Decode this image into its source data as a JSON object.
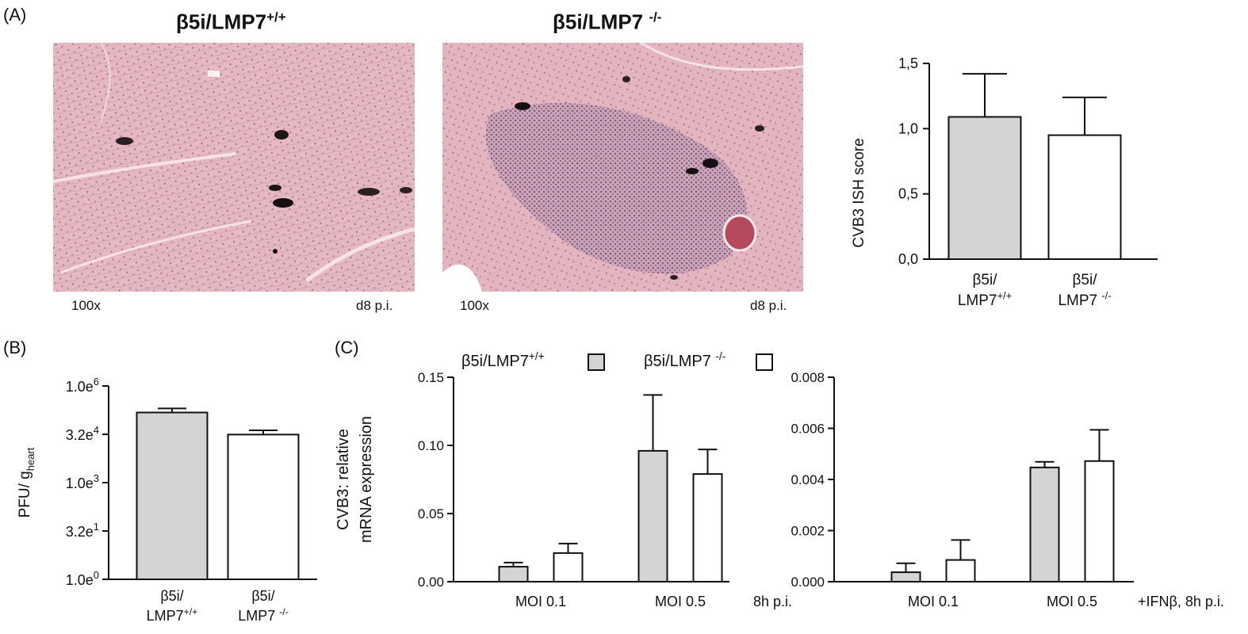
{
  "panels": {
    "a": "(A)",
    "b": "(B)",
    "c": "(C)"
  },
  "micro": {
    "left": {
      "title_main": "β5i/LMP7",
      "title_sup": "+/+",
      "magnification": "100x",
      "timepoint": "d8 p.i."
    },
    "right": {
      "title_main": "β5i/LMP7 ",
      "title_sup": "-/-",
      "magnification": "100x",
      "timepoint": "d8 p.i."
    }
  },
  "colors": {
    "wt_fill": "#d4d4d4",
    "ko_fill": "#ffffff",
    "stroke": "#111111",
    "tissue": "#e2b3bd",
    "tissue_dark": "#c98fa0",
    "stain": "#1a1418",
    "infiltrate": "#8a6d92"
  },
  "chart_data": [
    {
      "id": "ish",
      "type": "bar",
      "ylabel": "CVB3 ISH score",
      "ylim": [
        0,
        1.5
      ],
      "yticks": [
        "0,0",
        "0,5",
        "1,0",
        "1,5"
      ],
      "ytick_values": [
        0,
        0.5,
        1.0,
        1.5
      ],
      "categories": [
        {
          "line1": "β5i/",
          "line2": "LMP7",
          "sup": "+/+"
        },
        {
          "line1": "β5i/",
          "line2": "LMP7 ",
          "sup": "-/-"
        }
      ],
      "values": [
        1.09,
        0.95
      ],
      "errors": [
        0.33,
        0.29
      ]
    },
    {
      "id": "pfu",
      "type": "bar",
      "ylabel_main": "PFU/ g",
      "ylabel_sub": "heart",
      "scale": "log10",
      "ylim": [
        1,
        1000000
      ],
      "yticks": [
        {
          "base": "1.0e",
          "exp": "0"
        },
        {
          "base": "3.2e",
          "exp": "1"
        },
        {
          "base": "1.0e",
          "exp": "3"
        },
        {
          "base": "3.2e",
          "exp": "4"
        },
        {
          "base": "1.0e",
          "exp": "6"
        }
      ],
      "ytick_values": [
        1,
        31.6,
        1000,
        31600,
        1000000
      ],
      "categories": [
        {
          "line1": "β5i/",
          "line2": "LMP7",
          "sup": "+/+"
        },
        {
          "line1": "β5i/",
          "line2": "LMP7 ",
          "sup": "-/-"
        }
      ],
      "values": [
        150000,
        31000
      ],
      "errors_upper": [
        200000,
        42000
      ]
    },
    {
      "id": "mrna",
      "type": "bar",
      "ylabel_line1": "CVB3: relative",
      "ylabel_line2": "mRNA expression",
      "legend": [
        {
          "name": "β5i/LMP7",
          "sup": "+/+"
        },
        {
          "name": "β5i/LMP7 ",
          "sup": "-/-"
        }
      ],
      "panels": [
        {
          "ylim": [
            0,
            0.15
          ],
          "yticks": [
            "0.00",
            "0.05",
            "0.10",
            "0.15"
          ],
          "ytick_values": [
            0,
            0.05,
            0.1,
            0.15
          ],
          "categories": [
            "MOI 0.1",
            "MOI 0.5"
          ],
          "condition": "8h p.i.",
          "series": [
            {
              "name": "β5i/LMP7+/+",
              "values": [
                0.011,
                0.096
              ],
              "errors": [
                0.003,
                0.041
              ]
            },
            {
              "name": "β5i/LMP7-/-",
              "values": [
                0.021,
                0.079
              ],
              "errors": [
                0.007,
                0.018
              ]
            }
          ]
        },
        {
          "ylim": [
            0,
            0.008
          ],
          "yticks": [
            "0.000",
            "0.002",
            "0.004",
            "0.006",
            "0.008"
          ],
          "ytick_values": [
            0,
            0.002,
            0.004,
            0.006,
            0.008
          ],
          "categories": [
            "MOI 0.1",
            "MOI 0.5"
          ],
          "condition": "+IFNβ, 8h p.i.",
          "series": [
            {
              "name": "β5i/LMP7+/+",
              "values": [
                0.00037,
                0.00447
              ],
              "errors": [
                0.00035,
                0.00022
              ]
            },
            {
              "name": "β5i/LMP7-/-",
              "values": [
                0.00085,
                0.00472
              ],
              "errors": [
                0.00078,
                0.00122
              ]
            }
          ]
        }
      ]
    }
  ]
}
